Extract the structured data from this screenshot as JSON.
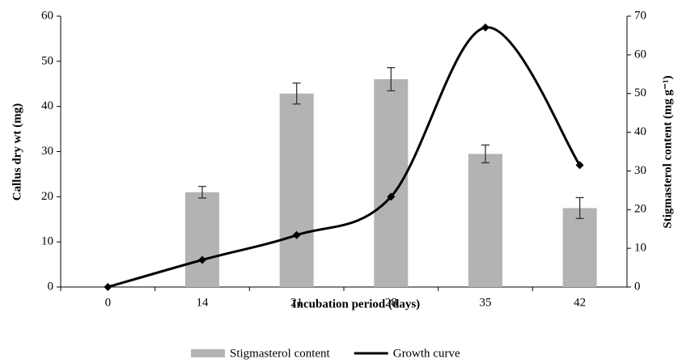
{
  "chart_data": {
    "type": "combo",
    "x_label": "Incubation  period (days)",
    "y_label": "Callus dry wt (mg)",
    "y2_label": "Stigmasterol content (mg g⁻¹)",
    "categories": [
      "0",
      "14",
      "21",
      "28",
      "35",
      "42"
    ],
    "ylim": [
      0,
      60
    ],
    "yticks": [
      0,
      10,
      20,
      30,
      40,
      50,
      60
    ],
    "y2lim": [
      0,
      70
    ],
    "y2ticks": [
      0,
      10,
      20,
      30,
      40,
      50,
      60,
      70
    ],
    "series": [
      {
        "name": "Stigmasterol content",
        "type": "bar",
        "axis": "y2",
        "color": "#b3b3b3",
        "values": [
          null,
          24.5,
          50,
          53.7,
          34.4,
          20.4
        ],
        "errors": [
          null,
          1.5,
          2.7,
          3,
          2.3,
          2.7
        ]
      },
      {
        "name": "Growth curve",
        "type": "line",
        "color": "#000000",
        "values": [
          0,
          6,
          11.5,
          20,
          57.5,
          27
        ]
      }
    ]
  }
}
